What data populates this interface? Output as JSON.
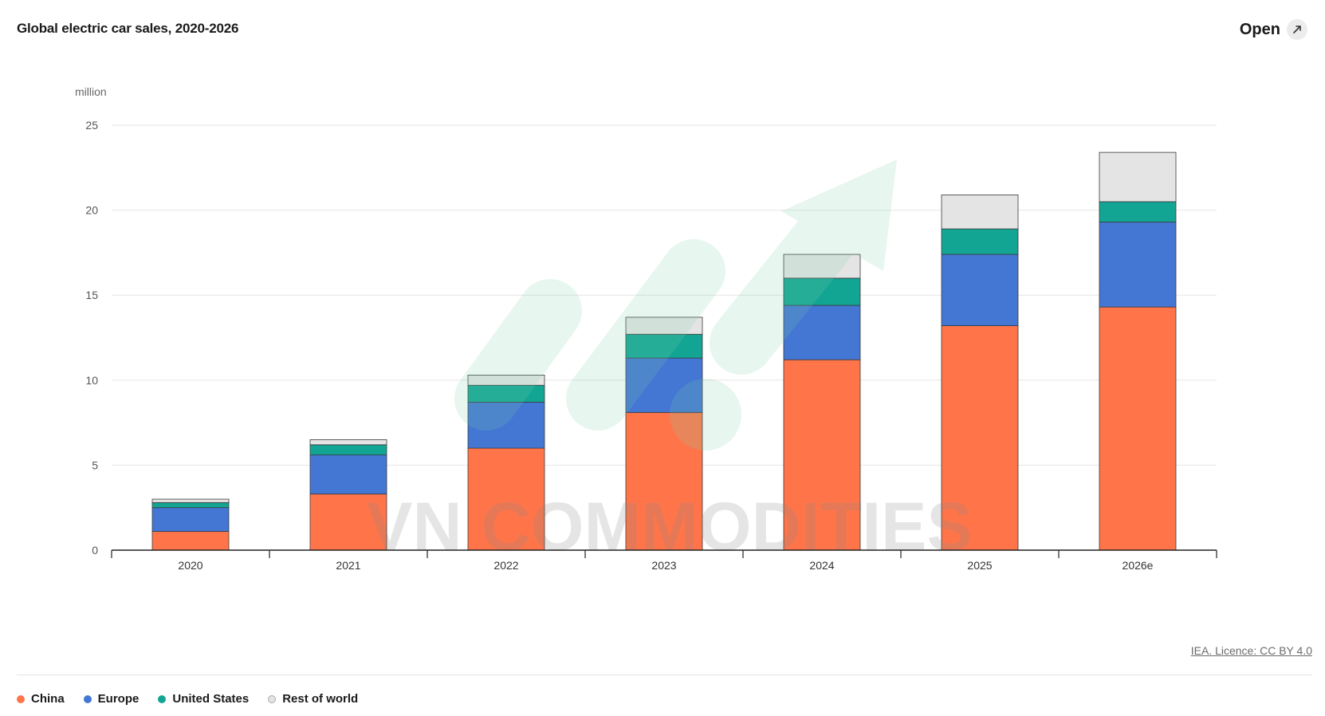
{
  "header": {
    "title": "Global electric car sales, 2020-2026",
    "open_label": "Open",
    "open_icon": "external-link-icon"
  },
  "footer": {
    "licence": "IEA. Licence: CC BY 4.0"
  },
  "watermark": {
    "text": "VN COMMODITIES"
  },
  "colors": {
    "China": "#ff7549",
    "Europe": "#4476d4",
    "United States": "#12a594",
    "Rest of world": "#e4e4e4"
  },
  "chart_data": {
    "type": "bar",
    "stacked": true,
    "title": "Global electric car sales, 2020-2026",
    "ylabel": "million",
    "ylim": [
      0,
      25
    ],
    "yticks": [
      0,
      5,
      10,
      15,
      20,
      25
    ],
    "grid": true,
    "legend_position": "bottom-left",
    "categories": [
      "2020",
      "2021",
      "2022",
      "2023",
      "2024",
      "2025",
      "2026e"
    ],
    "series": [
      {
        "name": "China",
        "values": [
          1.1,
          3.3,
          6.0,
          8.1,
          11.2,
          13.2,
          14.3
        ]
      },
      {
        "name": "Europe",
        "values": [
          1.4,
          2.3,
          2.7,
          3.2,
          3.2,
          4.2,
          5.0
        ]
      },
      {
        "name": "United States",
        "values": [
          0.3,
          0.6,
          1.0,
          1.4,
          1.6,
          1.5,
          1.2
        ]
      },
      {
        "name": "Rest of world",
        "values": [
          0.2,
          0.3,
          0.6,
          1.0,
          1.4,
          2.0,
          2.9
        ]
      }
    ]
  }
}
